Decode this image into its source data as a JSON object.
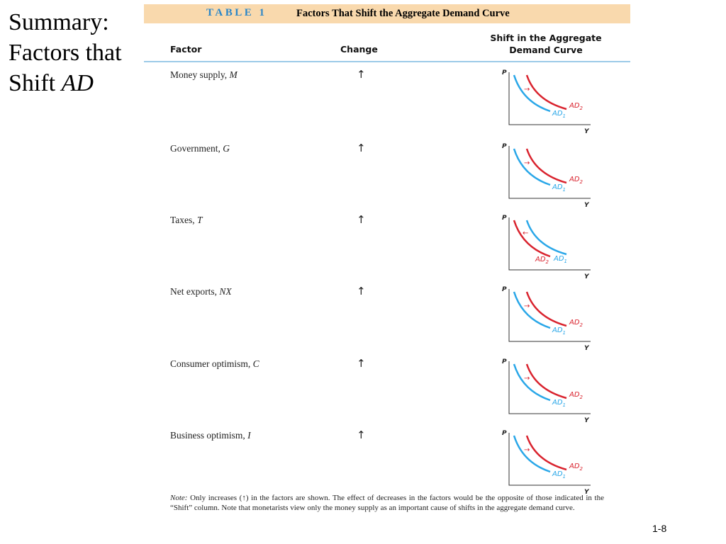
{
  "slide": {
    "title_line1": "Summary:",
    "title_line2": "Factors that",
    "title_line3_prefix": "Shift ",
    "title_line3_italic": "AD",
    "page_number": "1-8"
  },
  "table": {
    "label": "TABLE 1",
    "caption": "Factors That Shift the Aggregate Demand Curve",
    "headers": {
      "factor": "Factor",
      "change": "Change",
      "shift_line1": "Shift in the Aggregate",
      "shift_line2": "Demand Curve"
    },
    "rows": [
      {
        "factor": "Money supply, ",
        "symbol": "M",
        "change": "↑",
        "shift": "right"
      },
      {
        "factor": "Government, ",
        "symbol": "G",
        "change": "↑",
        "shift": "right"
      },
      {
        "factor": "Taxes, ",
        "symbol": "T",
        "change": "↑",
        "shift": "left"
      },
      {
        "factor": "Net exports, ",
        "symbol": "NX",
        "change": "↑",
        "shift": "right"
      },
      {
        "factor": "Consumer optimism, ",
        "symbol": "C",
        "change": "↑",
        "shift": "right"
      },
      {
        "factor": "Business optimism, ",
        "symbol": "I",
        "change": "↑",
        "shift": "right"
      }
    ],
    "graph_labels": {
      "p_axis": "P",
      "y_axis": "Y",
      "ad1": "AD",
      "ad2": "AD",
      "sub1": "1",
      "sub2": "2"
    },
    "note": {
      "prefix": "Note:",
      "text": " Only increases (↑) in the factors are shown. The effect of decreases in the factors would be the opposite of those indicated in the “Shift” column. Note that monetarists view only the money supply as an important cause of shifts in the aggregate demand curve."
    }
  },
  "colors": {
    "banner": "#f9d9ad",
    "label_blue": "#2a86c8",
    "ad1_blue": "#2aa7e8",
    "ad2_red": "#d9232e",
    "rule": "#9ccbe8"
  }
}
